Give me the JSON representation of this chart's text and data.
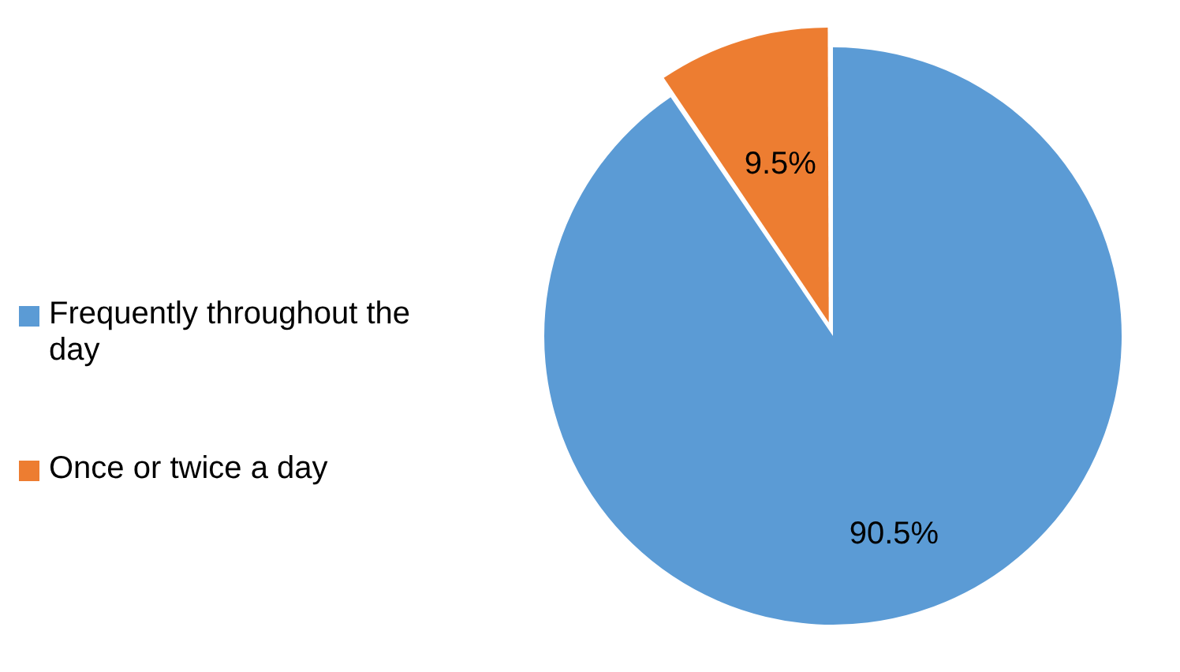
{
  "chart_data": {
    "type": "pie",
    "categories": [
      "Frequently throughout the day",
      "Once or twice a day"
    ],
    "values": [
      90.5,
      9.5
    ],
    "colors": [
      "#5b9bd5",
      "#ed7d31"
    ],
    "value_labels": [
      "90.5%",
      "9.5%"
    ],
    "legend": "left"
  }
}
